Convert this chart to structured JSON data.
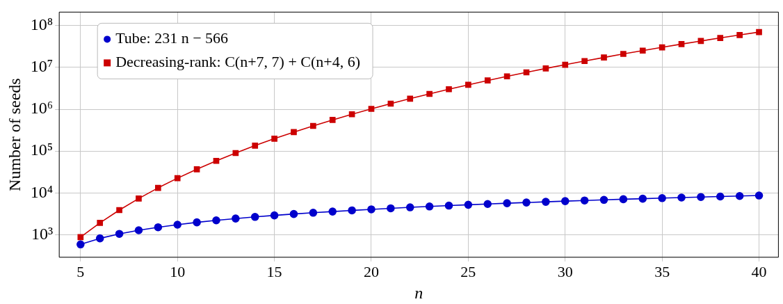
{
  "chart_data": {
    "type": "line",
    "xlabel": "n",
    "ylabel": "Number of seeds",
    "x": [
      5,
      6,
      7,
      8,
      9,
      10,
      11,
      12,
      13,
      14,
      15,
      16,
      17,
      18,
      19,
      20,
      21,
      22,
      23,
      24,
      25,
      26,
      27,
      28,
      29,
      30,
      31,
      32,
      33,
      34,
      35,
      36,
      37,
      38,
      39,
      40
    ],
    "series": [
      {
        "name": "Tube: 231 n − 566",
        "color": "#0000cc",
        "marker": "circle",
        "values": [
          589,
          820,
          1050,
          1280,
          1510,
          1740,
          1980,
          2210,
          2440,
          2670,
          2900,
          3130,
          3360,
          3590,
          3820,
          4050,
          4290,
          4520,
          4750,
          4980,
          5210,
          5440,
          5670,
          5900,
          6130,
          6360,
          6590,
          6830,
          7060,
          7290,
          7520,
          7750,
          7980,
          8210,
          8440,
          8670
        ]
      },
      {
        "name": "Decreasing-rank: C(n+7, 7) + C(n+4, 6)",
        "color": "#cc0000",
        "marker": "square",
        "values": [
          876,
          1930,
          3890,
          7360,
          13200,
          22500,
          36800,
          58400,
          89900,
          135000,
          198000,
          284000,
          400000,
          555000,
          759000,
          1020000,
          1360000,
          1790000,
          2330000,
          3010000,
          3840000,
          4870000,
          6120000,
          7630000,
          9460000,
          11600000,
          14200000,
          17300000,
          21000000,
          25200000,
          30200000,
          36100000,
          42800000,
          50600000,
          59600000,
          70000000
        ]
      }
    ],
    "log": "y",
    "xlim": [
      3.9,
      41
    ],
    "ylim": [
      290,
      210000000
    ],
    "xticks": [
      5,
      10,
      15,
      20,
      25,
      30,
      35,
      40
    ],
    "yticks": [
      {
        "value": 1000,
        "label": "10³"
      },
      {
        "value": 10000,
        "label": "10⁴"
      },
      {
        "value": 100000,
        "label": "10⁵"
      },
      {
        "value": 1000000,
        "label": "10⁶"
      },
      {
        "value": 10000000,
        "label": "10⁷"
      },
      {
        "value": 100000000,
        "label": "10⁸"
      }
    ],
    "grid": true,
    "legend": "top left",
    "line_style": "solid"
  }
}
